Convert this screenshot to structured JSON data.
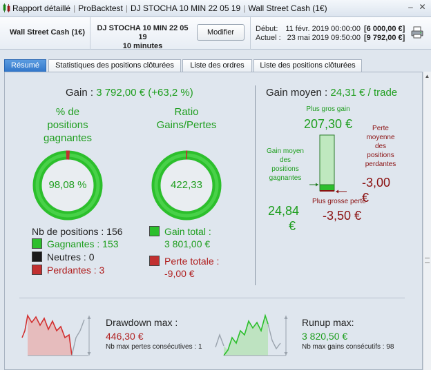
{
  "titlebar": {
    "crumbs": [
      "Rapport détaillé",
      "ProBacktest",
      "DJ STOCHA 10 MIN 22 05 19",
      "Wall Street Cash (1€)"
    ],
    "min": "–",
    "close": "✕"
  },
  "header": {
    "account": "Wall Street Cash (1€)",
    "strategy_name": "DJ STOCHA 10 MIN 22 05 19",
    "strategy_timeframe": "10 minutes",
    "modify_label": "Modifier",
    "start_label": "Début:",
    "start_date": "11 févr. 2019 00:00:00",
    "start_amount": "[6 000,00 €]",
    "end_label": "Actuel :",
    "end_date": "23 mai 2019 09:50:00",
    "end_amount": "[9 792,00 €]"
  },
  "tabs": [
    {
      "label": "Résumé",
      "active": true
    },
    {
      "label": "Statistiques des positions clôturées",
      "active": false
    },
    {
      "label": "Liste des ordres",
      "active": false
    },
    {
      "label": "Liste des positions clôturées",
      "active": false
    }
  ],
  "summary": {
    "gain_label": "Gain :",
    "gain_value": "3 792,00 € (+63,2 %)",
    "winning_title": [
      "% de",
      "positions",
      "gagnantes"
    ],
    "winning_pct": "98,08 %",
    "winning_fraction": 0.9808,
    "ratio_title": [
      "Ratio",
      "Gains/Pertes"
    ],
    "ratio_value": "422,33",
    "ratio_fraction": 0.9976,
    "nb_positions_label": "Nb de positions : 156",
    "winners_label": "Gagnantes : 153",
    "neutral_label": "Neutres : 0",
    "losers_label": "Perdantes : 3",
    "total_gain_label": "Gain total :",
    "total_gain_value": "3 801,00 €",
    "total_loss_label": "Perte totale :",
    "total_loss_value": "-9,00 €"
  },
  "average": {
    "title_label": "Gain moyen :",
    "title_value": "24,31 € / trade",
    "biggest_gain_label": "Plus gros gain",
    "biggest_gain_value": "207,30 €",
    "avg_win_label": [
      "Gain moyen",
      "des",
      "positions",
      "gagnantes"
    ],
    "avg_win_value": [
      "24,84",
      "€"
    ],
    "avg_loss_label": [
      "Perte",
      "moyenne",
      "des",
      "positions",
      "perdantes"
    ],
    "avg_loss_value": [
      "-3,00",
      "€"
    ],
    "biggest_loss_label": "Plus grosse perte",
    "biggest_loss_value": "-3,50 €"
  },
  "drawdown": {
    "title": "Drawdown max :",
    "value": "446,30 €",
    "sub": "Nb max pertes consécutives : 1"
  },
  "runup": {
    "title": "Runup max:",
    "value": "3 820,50 €",
    "sub": "Nb max gains consécutifs : 98"
  },
  "colors": {
    "green": "#1e9e1e",
    "red": "#b01e1e",
    "tab_active": "#2f75c9"
  }
}
